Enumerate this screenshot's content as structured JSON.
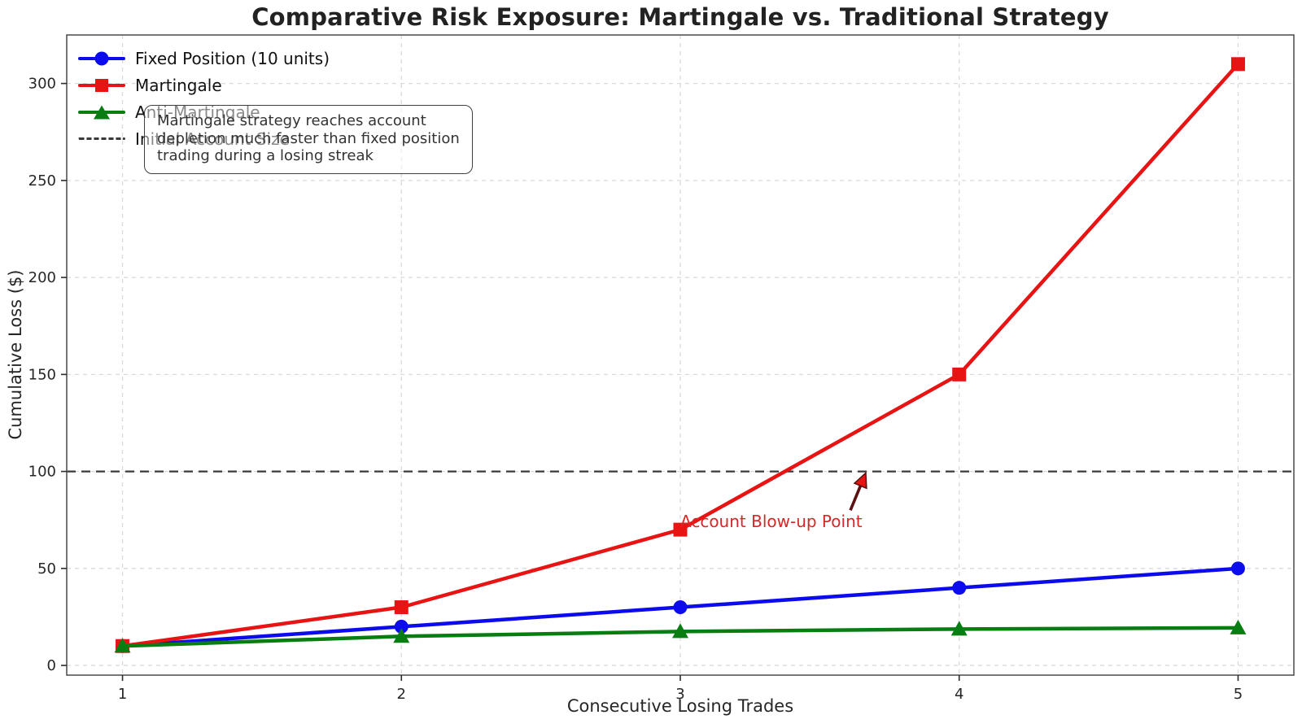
{
  "title": "Comparative Risk Exposure: Martingale vs. Traditional Strategy",
  "chart_data": {
    "type": "line",
    "title": "Comparative Risk Exposure: Martingale vs. Traditional Strategy",
    "xlabel": "Consecutive Losing Trades",
    "ylabel": "Cumulative Loss ($)",
    "x": [
      1,
      2,
      3,
      4,
      5
    ],
    "xticks": [
      "1",
      "2",
      "3",
      "4",
      "5"
    ],
    "yticks": [
      "0",
      "50",
      "100",
      "150",
      "200",
      "250",
      "300"
    ],
    "ytick_values": [
      0,
      50,
      100,
      150,
      200,
      250,
      300
    ],
    "xlim": [
      0.8,
      5.2
    ],
    "ylim": [
      -5,
      325
    ],
    "grid": true,
    "legend_position": "upper left",
    "series": [
      {
        "id": "fixed-position",
        "name": "Fixed Position (10 units)",
        "values": [
          10,
          20,
          30,
          40,
          50
        ],
        "color": "#0b0bee",
        "marker": "circle"
      },
      {
        "id": "martingale",
        "name": "Martingale",
        "values": [
          10,
          30,
          70,
          150,
          310
        ],
        "color": "#e81414",
        "marker": "square"
      },
      {
        "id": "anti-martingale",
        "name": "Anti-Martingale",
        "values": [
          10,
          15,
          17.5,
          18.75,
          19.375
        ],
        "color": "#077d12",
        "marker": "triangle"
      }
    ],
    "reference_line": {
      "label": "Initial Account Size",
      "y": 100,
      "color": "#3a3a3a",
      "style": "dashed"
    },
    "annotations": {
      "note": {
        "lines": [
          "Martingale strategy reaches account",
          "depletion much faster than fixed position",
          "trading during a losing streak"
        ]
      },
      "blowup": {
        "text": "Account Blow-up Point",
        "text_xy": [
          3.0,
          71.3
        ],
        "arrow_tail_xy": [
          3.61,
          80
        ],
        "arrow_tip_xy": [
          3.665,
          99.2
        ],
        "text_color": "#d62828",
        "arrow_line_color": "#5d1010",
        "arrow_head_color": "#e81414"
      }
    }
  },
  "legend": {
    "items": [
      {
        "label": "Fixed Position (10 units)",
        "marker": "circle",
        "color": "#0b0bee"
      },
      {
        "label": "Martingale",
        "marker": "square",
        "color": "#e81414"
      },
      {
        "label": "Anti-Martingale",
        "marker": "triangle",
        "color": "#077d12"
      },
      {
        "label": "Initial Account Size",
        "marker": "dash",
        "color": "#3a3a3a"
      }
    ]
  },
  "style": {
    "grid_color": "#dadada",
    "spine_color": "#555555",
    "tick_color": "#2c2c2c",
    "tick_label_color": "#262626"
  }
}
